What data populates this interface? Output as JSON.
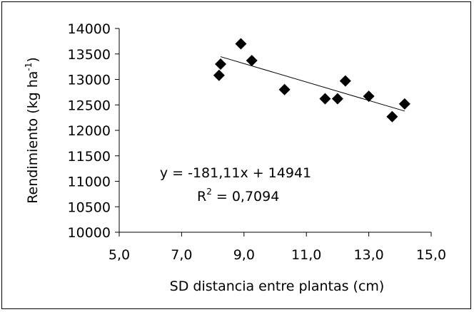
{
  "chart_data": {
    "type": "scatter",
    "xlabel": "SD distancia entre plantas (cm)",
    "ylabel": {
      "main": "Rendimiento (kg ha",
      "sup": "-1",
      "close": ")"
    },
    "xlim": [
      5.0,
      15.0
    ],
    "ylim": [
      10000,
      14000
    ],
    "x_ticks": [
      "5,0",
      "7,0",
      "9,0",
      "11,0",
      "13,0",
      "15,0"
    ],
    "x_tick_values": [
      5,
      7,
      9,
      11,
      13,
      15
    ],
    "y_ticks": [
      "10000",
      "10500",
      "11000",
      "11500",
      "12000",
      "12500",
      "13000",
      "13500",
      "14000"
    ],
    "y_tick_values": [
      10000,
      10500,
      11000,
      11500,
      12000,
      12500,
      13000,
      13500,
      14000
    ],
    "grid": false,
    "marker": "diamond",
    "marker_color": "#000000",
    "points": [
      {
        "x": 8.2,
        "y": 13080
      },
      {
        "x": 8.25,
        "y": 13300
      },
      {
        "x": 8.9,
        "y": 13700
      },
      {
        "x": 9.25,
        "y": 13370
      },
      {
        "x": 10.3,
        "y": 12800
      },
      {
        "x": 11.6,
        "y": 12620
      },
      {
        "x": 12.0,
        "y": 12620
      },
      {
        "x": 12.25,
        "y": 12970
      },
      {
        "x": 13.0,
        "y": 12670
      },
      {
        "x": 13.75,
        "y": 12270
      },
      {
        "x": 14.15,
        "y": 12520
      }
    ],
    "trendline": {
      "slope": -181.11,
      "intercept": 14941,
      "x_range": [
        8.25,
        14.15
      ],
      "equation_label": "y = -181,11x + 14941",
      "r2_label": {
        "prefix": "R",
        "sup": "2",
        "value": " = 0,7094"
      }
    }
  }
}
